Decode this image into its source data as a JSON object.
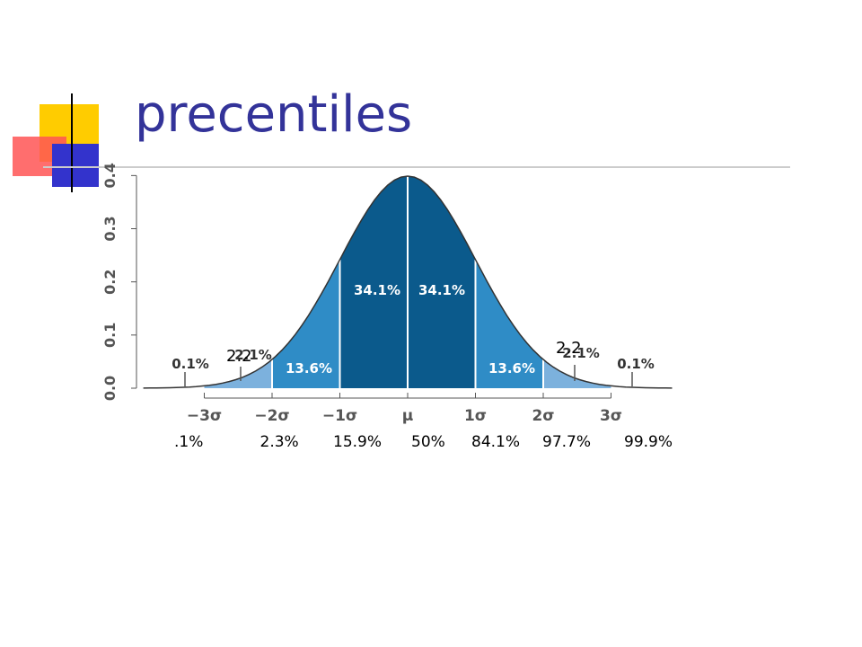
{
  "slide": {
    "title": "precentiles",
    "accent_colors": {
      "yellow": "#FFCC00",
      "red": "#FF3333",
      "blue": "#3333CC",
      "title": "#333399"
    }
  },
  "chart_data": {
    "type": "area",
    "distribution": "normal",
    "x_ticks": [
      "−3σ",
      "−2σ",
      "−1σ",
      "μ",
      "1σ",
      "2σ",
      "3σ"
    ],
    "y_ticks": [
      "0.0",
      "0.1",
      "0.2",
      "0.3",
      "0.4"
    ],
    "ylim": [
      0,
      0.4
    ],
    "xlim": [
      -3.9,
      3.9
    ],
    "grid": false,
    "regions": [
      {
        "from": -3,
        "to": -2,
        "label": "2.1%",
        "color": "#7CB1DD"
      },
      {
        "from": -2,
        "to": -1,
        "label": "13.6%",
        "color": "#2F8CC6"
      },
      {
        "from": -1,
        "to": 0,
        "label": "34.1%",
        "color": "#0B5A8C"
      },
      {
        "from": 0,
        "to": 1,
        "label": "34.1%",
        "color": "#0B5A8C"
      },
      {
        "from": 1,
        "to": 2,
        "label": "13.6%",
        "color": "#2F8CC6"
      },
      {
        "from": 2,
        "to": 3,
        "label": "2.1%",
        "color": "#7CB1DD"
      }
    ],
    "tail_labels": {
      "left": "0.1%",
      "right": "0.1%"
    },
    "percentiles": [
      ".1%",
      "2.3%",
      "15.9%",
      "50%",
      "84.1%",
      "97.7%",
      "99.9%"
    ],
    "annotations": [
      "2.2",
      "2.2"
    ]
  }
}
